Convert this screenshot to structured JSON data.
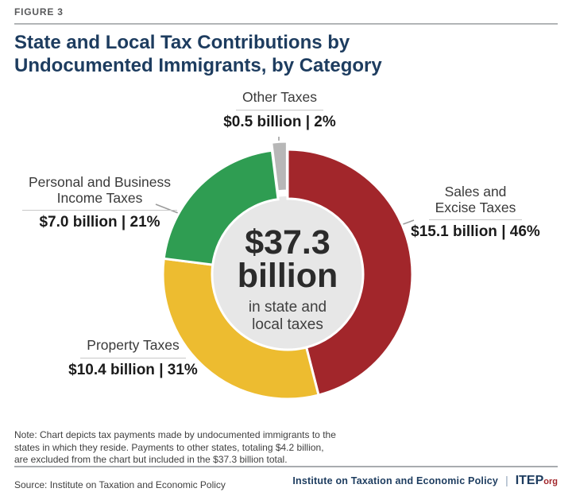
{
  "figure_label": "FIGURE 3",
  "title": "State and Local Tax Contributions by\nUndocumented Immigrants, by Category",
  "colors": {
    "title_navy": "#1d3c5f",
    "brand_red": "#a2262b",
    "center_circle": "#e7e7e7",
    "leader_line": "#9b9b9b",
    "rule_gray": "#b2b5b7"
  },
  "chart_data": {
    "type": "pie",
    "subtype": "donut",
    "title": "State and Local Tax Contributions by Undocumented Immigrants, by Category",
    "unit": "billions of USD",
    "total_amount_billions": 37.3,
    "center": {
      "line1": "$37.3",
      "line2": "billion",
      "caption": "in state and\nlocal taxes"
    },
    "segments": [
      {
        "id": "sales-excise-taxes",
        "name": "Sales and Excise Taxes",
        "name_lines": "Sales and\nExcise Taxes",
        "amount_billions": 15.1,
        "percent": 46,
        "value_label": "$15.1 billion | 46%",
        "color": "#a2262b",
        "exploded": false
      },
      {
        "id": "property-taxes",
        "name": "Property Taxes",
        "name_lines": "Property Taxes",
        "amount_billions": 10.4,
        "percent": 31,
        "value_label": "$10.4 billion | 31%",
        "color": "#edbc30",
        "exploded": false
      },
      {
        "id": "personal-business-income-taxes",
        "name": "Personal and Business Income Taxes",
        "name_lines": "Personal and Business\nIncome Taxes",
        "amount_billions": 7.0,
        "percent": 21,
        "value_label": "$7.0 billion | 21%",
        "color": "#2f9d52",
        "exploded": false
      },
      {
        "id": "other-taxes",
        "name": "Other Taxes",
        "name_lines": "Other Taxes",
        "amount_billions": 0.5,
        "percent": 2,
        "value_label": "$0.5 billion | 2%",
        "color": "#b7b7b7",
        "exploded": true
      }
    ]
  },
  "note": "Note: Chart depicts tax payments made by undocumented immigrants to the\nstates in which they reside. Payments to other states, totaling $4.2 billion,\nare excluded from the chart but included in the $37.3 billion total.",
  "source": "Source: Institute on Taxation and Economic Policy",
  "footer": {
    "org": "Institute on Taxation and Economic Policy",
    "divider": "|",
    "brand": "ITEP",
    "brand_suffix": "org"
  }
}
